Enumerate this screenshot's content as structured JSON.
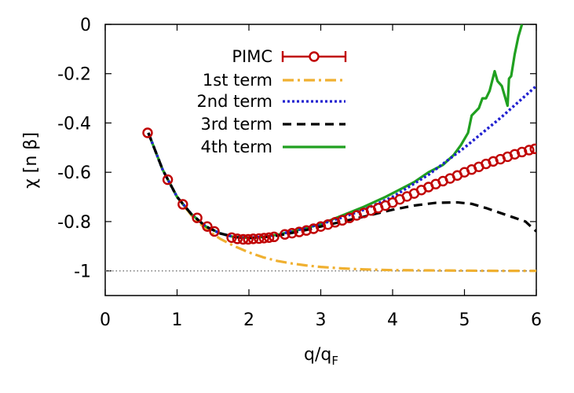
{
  "chart_data": {
    "type": "line",
    "title": "",
    "xlabel": "q/q",
    "xlabel_sub": "F",
    "ylabel": "χ [n β]",
    "xlim": [
      0,
      6
    ],
    "ylim": [
      -1.1,
      0
    ],
    "x_ticks": [
      0,
      1,
      2,
      3,
      4,
      5,
      6
    ],
    "x_tick_labels": [
      "0",
      "1",
      "2",
      "3",
      "4",
      "5",
      "6"
    ],
    "y_ticks": [
      0,
      -0.2,
      -0.4,
      -0.6,
      -0.8,
      -1
    ],
    "y_tick_labels": [
      "0",
      "-0.2",
      "-0.4",
      "-0.6",
      "-0.8",
      "-1"
    ],
    "reference_line": {
      "y": -1,
      "style": "dotted",
      "color": "#777777"
    },
    "legend_position": "top-center",
    "series": [
      {
        "name": "PIMC",
        "style": "points-errorbars",
        "color": "#c00000",
        "x": [
          0.59,
          0.87,
          1.08,
          1.28,
          1.42,
          1.52,
          1.76,
          1.84,
          1.92,
          1.99,
          2.06,
          2.14,
          2.21,
          2.28,
          2.35,
          2.5,
          2.6,
          2.7,
          2.8,
          2.9,
          3.0,
          3.1,
          3.2,
          3.3,
          3.4,
          3.5,
          3.6,
          3.7,
          3.8,
          3.9,
          4.0,
          4.1,
          4.2,
          4.3,
          4.4,
          4.5,
          4.6,
          4.7,
          4.8,
          4.9,
          5.0,
          5.1,
          5.2,
          5.3,
          5.4,
          5.5,
          5.6,
          5.7,
          5.8,
          5.9,
          5.98
        ],
        "y": [
          -0.44,
          -0.63,
          -0.73,
          -0.785,
          -0.82,
          -0.84,
          -0.865,
          -0.87,
          -0.872,
          -0.872,
          -0.87,
          -0.869,
          -0.867,
          -0.865,
          -0.862,
          -0.852,
          -0.847,
          -0.842,
          -0.836,
          -0.829,
          -0.82,
          -0.812,
          -0.803,
          -0.795,
          -0.785,
          -0.775,
          -0.765,
          -0.755,
          -0.745,
          -0.735,
          -0.723,
          -0.71,
          -0.698,
          -0.686,
          -0.672,
          -0.66,
          -0.648,
          -0.636,
          -0.625,
          -0.613,
          -0.6,
          -0.589,
          -0.578,
          -0.566,
          -0.556,
          -0.547,
          -0.537,
          -0.527,
          -0.518,
          -0.51,
          -0.505
        ]
      },
      {
        "name": "1st term",
        "style": "dash-dot",
        "color": "#f0b030",
        "x": [
          0.6,
          0.8,
          1.0,
          1.2,
          1.4,
          1.6,
          1.8,
          2.0,
          2.2,
          2.4,
          2.6,
          2.8,
          3.0,
          3.3,
          3.6,
          4.0,
          4.5,
          5.0,
          5.5,
          6.0
        ],
        "y": [
          -0.44,
          -0.59,
          -0.7,
          -0.775,
          -0.83,
          -0.87,
          -0.9,
          -0.925,
          -0.945,
          -0.96,
          -0.97,
          -0.978,
          -0.984,
          -0.99,
          -0.994,
          -0.997,
          -0.998,
          -0.999,
          -1.0,
          -1.0
        ]
      },
      {
        "name": "2nd term",
        "style": "dotted",
        "color": "#2020d0",
        "x": [
          0.6,
          0.8,
          1.0,
          1.2,
          1.4,
          1.6,
          1.8,
          2.0,
          2.2,
          2.4,
          2.6,
          2.8,
          3.0,
          3.3,
          3.6,
          4.0,
          4.5,
          5.0,
          5.5,
          6.0
        ],
        "y": [
          -0.44,
          -0.59,
          -0.7,
          -0.77,
          -0.82,
          -0.848,
          -0.863,
          -0.866,
          -0.862,
          -0.853,
          -0.84,
          -0.826,
          -0.81,
          -0.783,
          -0.752,
          -0.7,
          -0.61,
          -0.5,
          -0.38,
          -0.25
        ]
      },
      {
        "name": "3rd term",
        "style": "dashed",
        "color": "#000000",
        "x": [
          0.6,
          0.8,
          1.0,
          1.2,
          1.4,
          1.6,
          1.8,
          2.0,
          2.2,
          2.4,
          2.6,
          2.8,
          3.0,
          3.3,
          3.6,
          4.0,
          4.3,
          4.6,
          4.9,
          5.1,
          5.3,
          5.5,
          5.7,
          5.85,
          6.0
        ],
        "y": [
          -0.44,
          -0.59,
          -0.7,
          -0.77,
          -0.82,
          -0.848,
          -0.863,
          -0.867,
          -0.863,
          -0.857,
          -0.846,
          -0.834,
          -0.82,
          -0.8,
          -0.78,
          -0.752,
          -0.735,
          -0.724,
          -0.722,
          -0.728,
          -0.745,
          -0.765,
          -0.785,
          -0.8,
          -0.84
        ]
      },
      {
        "name": "4th term",
        "style": "solid",
        "color": "#20a020",
        "x": [
          0.6,
          0.8,
          1.0,
          1.2,
          1.4,
          1.6,
          1.8,
          2.0,
          2.2,
          2.4,
          2.6,
          2.8,
          3.0,
          3.3,
          3.6,
          3.9,
          4.1,
          4.3,
          4.5,
          4.7,
          4.85,
          4.95,
          5.05,
          5.1,
          5.2,
          5.25,
          5.3,
          5.35,
          5.42,
          5.46,
          5.52,
          5.57,
          5.6,
          5.62,
          5.65,
          5.7,
          5.75,
          5.8
        ],
        "y": [
          -0.44,
          -0.59,
          -0.7,
          -0.77,
          -0.82,
          -0.848,
          -0.863,
          -0.866,
          -0.862,
          -0.853,
          -0.84,
          -0.826,
          -0.81,
          -0.775,
          -0.74,
          -0.7,
          -0.67,
          -0.64,
          -0.6,
          -0.57,
          -0.53,
          -0.49,
          -0.44,
          -0.37,
          -0.34,
          -0.3,
          -0.3,
          -0.27,
          -0.19,
          -0.23,
          -0.25,
          -0.3,
          -0.33,
          -0.22,
          -0.21,
          -0.12,
          -0.05,
          0.0
        ]
      }
    ]
  }
}
